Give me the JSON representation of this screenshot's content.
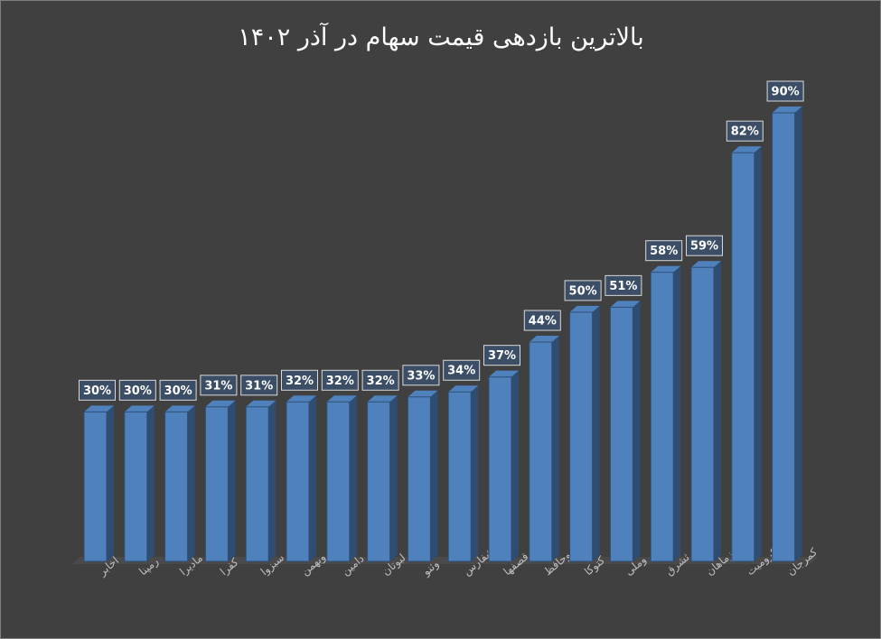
{
  "chart_data": {
    "type": "bar",
    "title": "بالاترین بازدهی قیمت سهام در آذر ۱۴۰۲",
    "categories": [
      "اخابر",
      "رمپنا",
      "مادیرا",
      "کفرا",
      "سبزوا",
      "وبهمن",
      "دامین",
      "لبوتان",
      "وثنو",
      "شفارس",
      "قصفها",
      "وحافظ",
      "کتوکا",
      "وملی",
      "ثشرق",
      "زماهان",
      "کرومیت",
      "کمرجان"
    ],
    "values": [
      30,
      30,
      30,
      31,
      31,
      32,
      32,
      32,
      33,
      34,
      37,
      44,
      50,
      51,
      58,
      59,
      82,
      90
    ],
    "value_labels": [
      "30%",
      "30%",
      "30%",
      "31%",
      "31%",
      "32%",
      "32%",
      "32%",
      "33%",
      "34%",
      "37%",
      "44%",
      "50%",
      "51%",
      "58%",
      "59%",
      "82%",
      "90%"
    ],
    "color": "#4f81bd"
  }
}
